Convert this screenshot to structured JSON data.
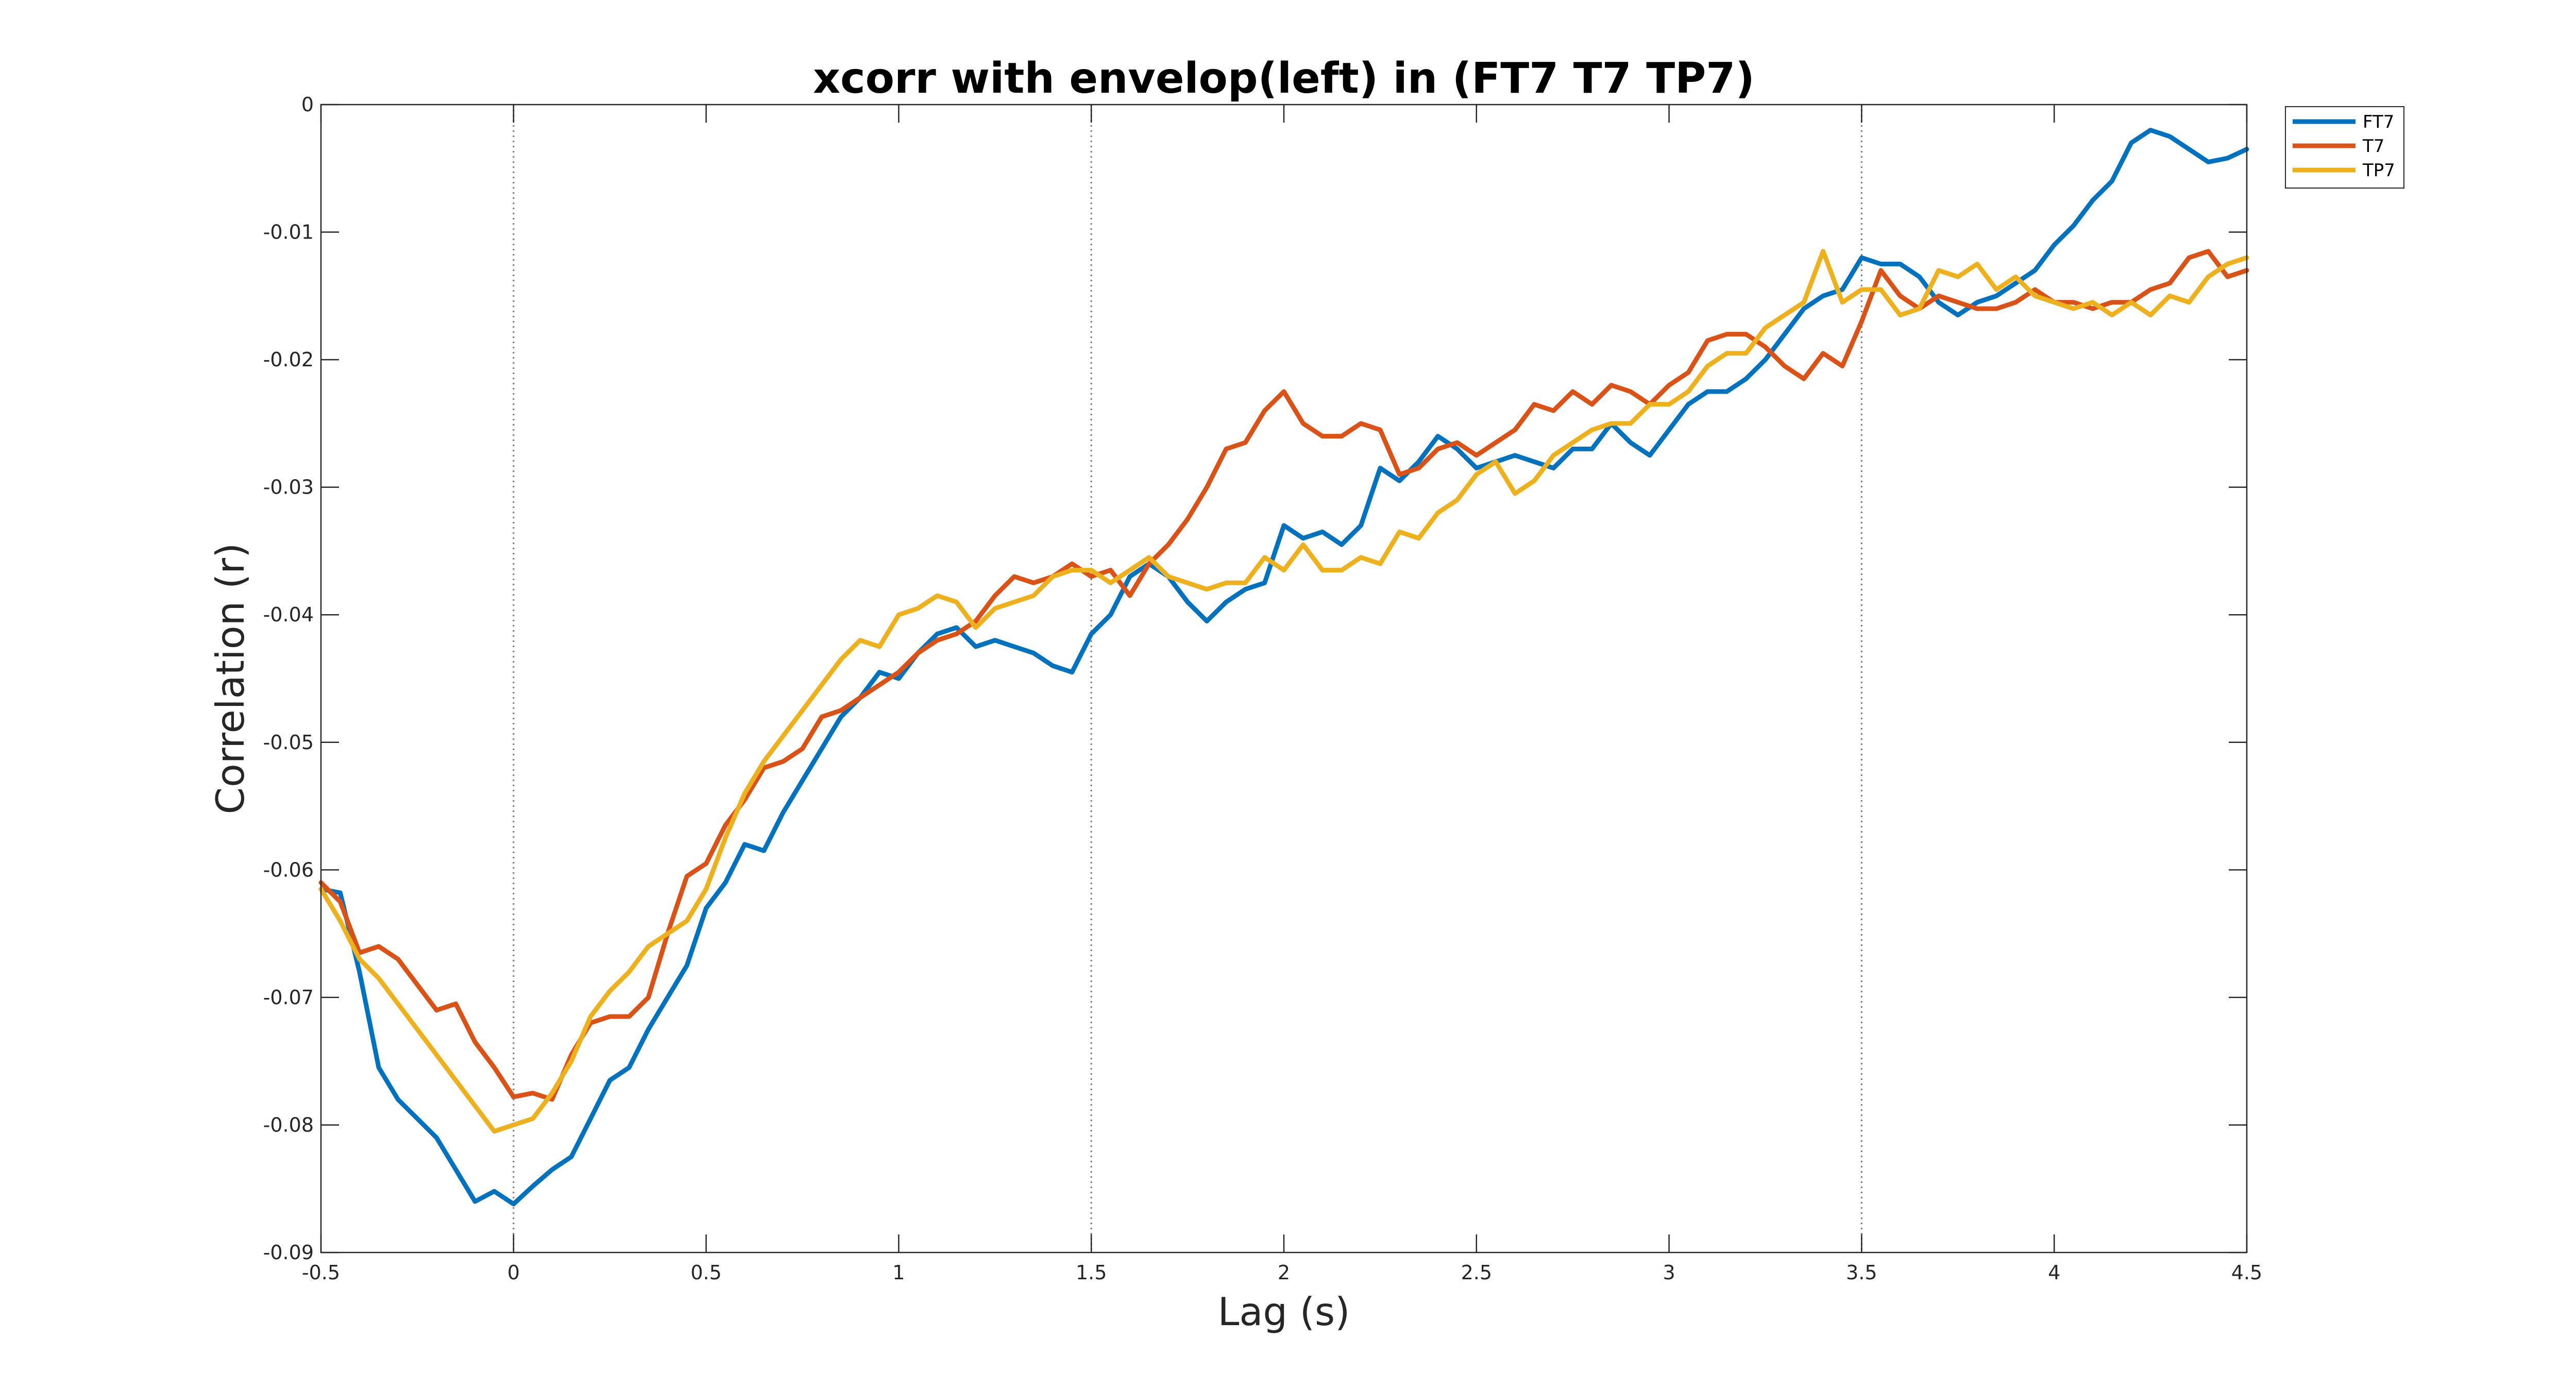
{
  "chart_data": {
    "type": "line",
    "title": "xcorr with envelop(left) in (FT7 T7 TP7)",
    "xlabel": "Lag (s)",
    "ylabel": "Correlation (r)",
    "xlim": [
      -0.5,
      4.5
    ],
    "ylim": [
      -0.09,
      0
    ],
    "xticks": [
      -0.5,
      0,
      0.5,
      1,
      1.5,
      2,
      2.5,
      3,
      3.5,
      4,
      4.5
    ],
    "xtick_labels": [
      "-0.5",
      "0",
      "0.5",
      "1",
      "1.5",
      "2",
      "2.5",
      "3",
      "3.5",
      "4",
      "4.5"
    ],
    "yticks": [
      0,
      -0.01,
      -0.02,
      -0.03,
      -0.04,
      -0.05,
      -0.06,
      -0.07,
      -0.08,
      -0.09
    ],
    "ytick_labels": [
      "0",
      "-0.01",
      "-0.02",
      "-0.03",
      "-0.04",
      "-0.05",
      "-0.06",
      "-0.07",
      "-0.08",
      "-0.09"
    ],
    "vlines": [
      0,
      1.5,
      3.5
    ],
    "grid": false,
    "legend_position": "outside-top-right",
    "series": [
      {
        "name": "FT7",
        "color": "#0072BD",
        "x": [
          -0.5,
          -0.45,
          -0.4,
          -0.35,
          -0.3,
          -0.25,
          -0.2,
          -0.15,
          -0.1,
          -0.05,
          0,
          0.05,
          0.1,
          0.15,
          0.2,
          0.25,
          0.3,
          0.35,
          0.4,
          0.45,
          0.5,
          0.55,
          0.6,
          0.65,
          0.7,
          0.75,
          0.8,
          0.85,
          0.9,
          0.95,
          1,
          1.05,
          1.1,
          1.15,
          1.2,
          1.25,
          1.3,
          1.35,
          1.4,
          1.45,
          1.5,
          1.55,
          1.6,
          1.65,
          1.7,
          1.75,
          1.8,
          1.85,
          1.9,
          1.95,
          2,
          2.05,
          2.1,
          2.15,
          2.2,
          2.25,
          2.3,
          2.35,
          2.4,
          2.45,
          2.5,
          2.55,
          2.6,
          2.65,
          2.7,
          2.75,
          2.8,
          2.85,
          2.9,
          2.95,
          3,
          3.05,
          3.1,
          3.15,
          3.2,
          3.25,
          3.3,
          3.35,
          3.4,
          3.45,
          3.5,
          3.55,
          3.6,
          3.65,
          3.7,
          3.75,
          3.8,
          3.85,
          3.9,
          3.95,
          4,
          4.05,
          4.1,
          4.15,
          4.2,
          4.25,
          4.3,
          4.35,
          4.4,
          4.45,
          4.5
        ],
        "y": [
          -0.0615,
          -0.0618,
          -0.068,
          -0.0755,
          -0.078,
          -0.0795,
          -0.081,
          -0.0835,
          -0.086,
          -0.0852,
          -0.0862,
          -0.0848,
          -0.0835,
          -0.0825,
          -0.0795,
          -0.0765,
          -0.0755,
          -0.0725,
          -0.07,
          -0.0675,
          -0.063,
          -0.061,
          -0.058,
          -0.0585,
          -0.0555,
          -0.053,
          -0.0505,
          -0.048,
          -0.0465,
          -0.0445,
          -0.045,
          -0.043,
          -0.0415,
          -0.041,
          -0.0425,
          -0.042,
          -0.0425,
          -0.043,
          -0.044,
          -0.0445,
          -0.0415,
          -0.04,
          -0.037,
          -0.036,
          -0.037,
          -0.039,
          -0.0405,
          -0.039,
          -0.038,
          -0.0375,
          -0.033,
          -0.034,
          -0.0335,
          -0.0345,
          -0.033,
          -0.0285,
          -0.0295,
          -0.028,
          -0.026,
          -0.027,
          -0.0285,
          -0.028,
          -0.0275,
          -0.028,
          -0.0285,
          -0.027,
          -0.027,
          -0.025,
          -0.0265,
          -0.0275,
          -0.0255,
          -0.0235,
          -0.0225,
          -0.0225,
          -0.0215,
          -0.02,
          -0.018,
          -0.016,
          -0.015,
          -0.0145,
          -0.012,
          -0.0125,
          -0.0125,
          -0.0135,
          -0.0155,
          -0.0165,
          -0.0155,
          -0.015,
          -0.014,
          -0.013,
          -0.011,
          -0.0095,
          -0.0075,
          -0.006,
          -0.003,
          -0.002,
          -0.0025,
          -0.0035,
          -0.0045,
          -0.0042,
          -0.0035
        ]
      },
      {
        "name": "T7",
        "color": "#D95319",
        "x": [
          -0.5,
          -0.45,
          -0.4,
          -0.35,
          -0.3,
          -0.25,
          -0.2,
          -0.15,
          -0.1,
          -0.05,
          0,
          0.05,
          0.1,
          0.15,
          0.2,
          0.25,
          0.3,
          0.35,
          0.4,
          0.45,
          0.5,
          0.55,
          0.6,
          0.65,
          0.7,
          0.75,
          0.8,
          0.85,
          0.9,
          0.95,
          1,
          1.05,
          1.1,
          1.15,
          1.2,
          1.25,
          1.3,
          1.35,
          1.4,
          1.45,
          1.5,
          1.55,
          1.6,
          1.65,
          1.7,
          1.75,
          1.8,
          1.85,
          1.9,
          1.95,
          2,
          2.05,
          2.1,
          2.15,
          2.2,
          2.25,
          2.3,
          2.35,
          2.4,
          2.45,
          2.5,
          2.55,
          2.6,
          2.65,
          2.7,
          2.75,
          2.8,
          2.85,
          2.9,
          2.95,
          3,
          3.05,
          3.1,
          3.15,
          3.2,
          3.25,
          3.3,
          3.35,
          3.4,
          3.45,
          3.5,
          3.55,
          3.6,
          3.65,
          3.7,
          3.75,
          3.8,
          3.85,
          3.9,
          3.95,
          4,
          4.05,
          4.1,
          4.15,
          4.2,
          4.25,
          4.3,
          4.35,
          4.4,
          4.45,
          4.5
        ],
        "y": [
          -0.061,
          -0.0625,
          -0.0665,
          -0.066,
          -0.067,
          -0.069,
          -0.071,
          -0.0705,
          -0.0735,
          -0.0755,
          -0.0778,
          -0.0775,
          -0.078,
          -0.0745,
          -0.072,
          -0.0715,
          -0.0715,
          -0.07,
          -0.065,
          -0.0605,
          -0.0595,
          -0.0565,
          -0.0545,
          -0.052,
          -0.0515,
          -0.0505,
          -0.048,
          -0.0475,
          -0.0465,
          -0.0455,
          -0.0445,
          -0.043,
          -0.042,
          -0.0415,
          -0.0405,
          -0.0385,
          -0.037,
          -0.0375,
          -0.037,
          -0.036,
          -0.037,
          -0.0365,
          -0.0385,
          -0.036,
          -0.0345,
          -0.0325,
          -0.03,
          -0.027,
          -0.0265,
          -0.024,
          -0.0225,
          -0.025,
          -0.026,
          -0.026,
          -0.025,
          -0.0255,
          -0.029,
          -0.0285,
          -0.027,
          -0.0265,
          -0.0275,
          -0.0265,
          -0.0255,
          -0.0235,
          -0.024,
          -0.0225,
          -0.0235,
          -0.022,
          -0.0225,
          -0.0235,
          -0.022,
          -0.021,
          -0.0185,
          -0.018,
          -0.018,
          -0.019,
          -0.0205,
          -0.0215,
          -0.0195,
          -0.0205,
          -0.017,
          -0.013,
          -0.015,
          -0.016,
          -0.015,
          -0.0155,
          -0.016,
          -0.016,
          -0.0155,
          -0.0145,
          -0.0155,
          -0.0155,
          -0.016,
          -0.0155,
          -0.0155,
          -0.0145,
          -0.014,
          -0.012,
          -0.0115,
          -0.0135,
          -0.013
        ]
      },
      {
        "name": "TP7",
        "color": "#EDB120",
        "x": [
          -0.5,
          -0.45,
          -0.4,
          -0.35,
          -0.3,
          -0.25,
          -0.2,
          -0.15,
          -0.1,
          -0.05,
          0,
          0.05,
          0.1,
          0.15,
          0.2,
          0.25,
          0.3,
          0.35,
          0.4,
          0.45,
          0.5,
          0.55,
          0.6,
          0.65,
          0.7,
          0.75,
          0.8,
          0.85,
          0.9,
          0.95,
          1,
          1.05,
          1.1,
          1.15,
          1.2,
          1.25,
          1.3,
          1.35,
          1.4,
          1.45,
          1.5,
          1.55,
          1.6,
          1.65,
          1.7,
          1.75,
          1.8,
          1.85,
          1.9,
          1.95,
          2,
          2.05,
          2.1,
          2.15,
          2.2,
          2.25,
          2.3,
          2.35,
          2.4,
          2.45,
          2.5,
          2.55,
          2.6,
          2.65,
          2.7,
          2.75,
          2.8,
          2.85,
          2.9,
          2.95,
          3,
          3.05,
          3.1,
          3.15,
          3.2,
          3.25,
          3.3,
          3.35,
          3.4,
          3.45,
          3.5,
          3.55,
          3.6,
          3.65,
          3.7,
          3.75,
          3.8,
          3.85,
          3.9,
          3.95,
          4,
          4.05,
          4.1,
          4.15,
          4.2,
          4.25,
          4.3,
          4.35,
          4.4,
          4.45,
          4.5
        ],
        "y": [
          -0.0615,
          -0.064,
          -0.067,
          -0.0685,
          -0.0705,
          -0.0725,
          -0.0745,
          -0.0765,
          -0.0785,
          -0.0805,
          -0.08,
          -0.0795,
          -0.0775,
          -0.075,
          -0.0715,
          -0.0695,
          -0.068,
          -0.066,
          -0.065,
          -0.064,
          -0.0615,
          -0.0575,
          -0.054,
          -0.0515,
          -0.0495,
          -0.0475,
          -0.0455,
          -0.0435,
          -0.042,
          -0.0425,
          -0.04,
          -0.0395,
          -0.0385,
          -0.039,
          -0.041,
          -0.0395,
          -0.039,
          -0.0385,
          -0.037,
          -0.0365,
          -0.0365,
          -0.0375,
          -0.0365,
          -0.0355,
          -0.037,
          -0.0375,
          -0.038,
          -0.0375,
          -0.0375,
          -0.0355,
          -0.0365,
          -0.0345,
          -0.0365,
          -0.0365,
          -0.0355,
          -0.036,
          -0.0335,
          -0.034,
          -0.032,
          -0.031,
          -0.029,
          -0.028,
          -0.0305,
          -0.0295,
          -0.0275,
          -0.0265,
          -0.0255,
          -0.025,
          -0.025,
          -0.0235,
          -0.0235,
          -0.0225,
          -0.0205,
          -0.0195,
          -0.0195,
          -0.0175,
          -0.0165,
          -0.0155,
          -0.0115,
          -0.0155,
          -0.0145,
          -0.0145,
          -0.0165,
          -0.016,
          -0.013,
          -0.0135,
          -0.0125,
          -0.0145,
          -0.0135,
          -0.015,
          -0.0155,
          -0.016,
          -0.0155,
          -0.0165,
          -0.0155,
          -0.0165,
          -0.015,
          -0.0155,
          -0.0135,
          -0.0125,
          -0.012
        ]
      }
    ]
  }
}
